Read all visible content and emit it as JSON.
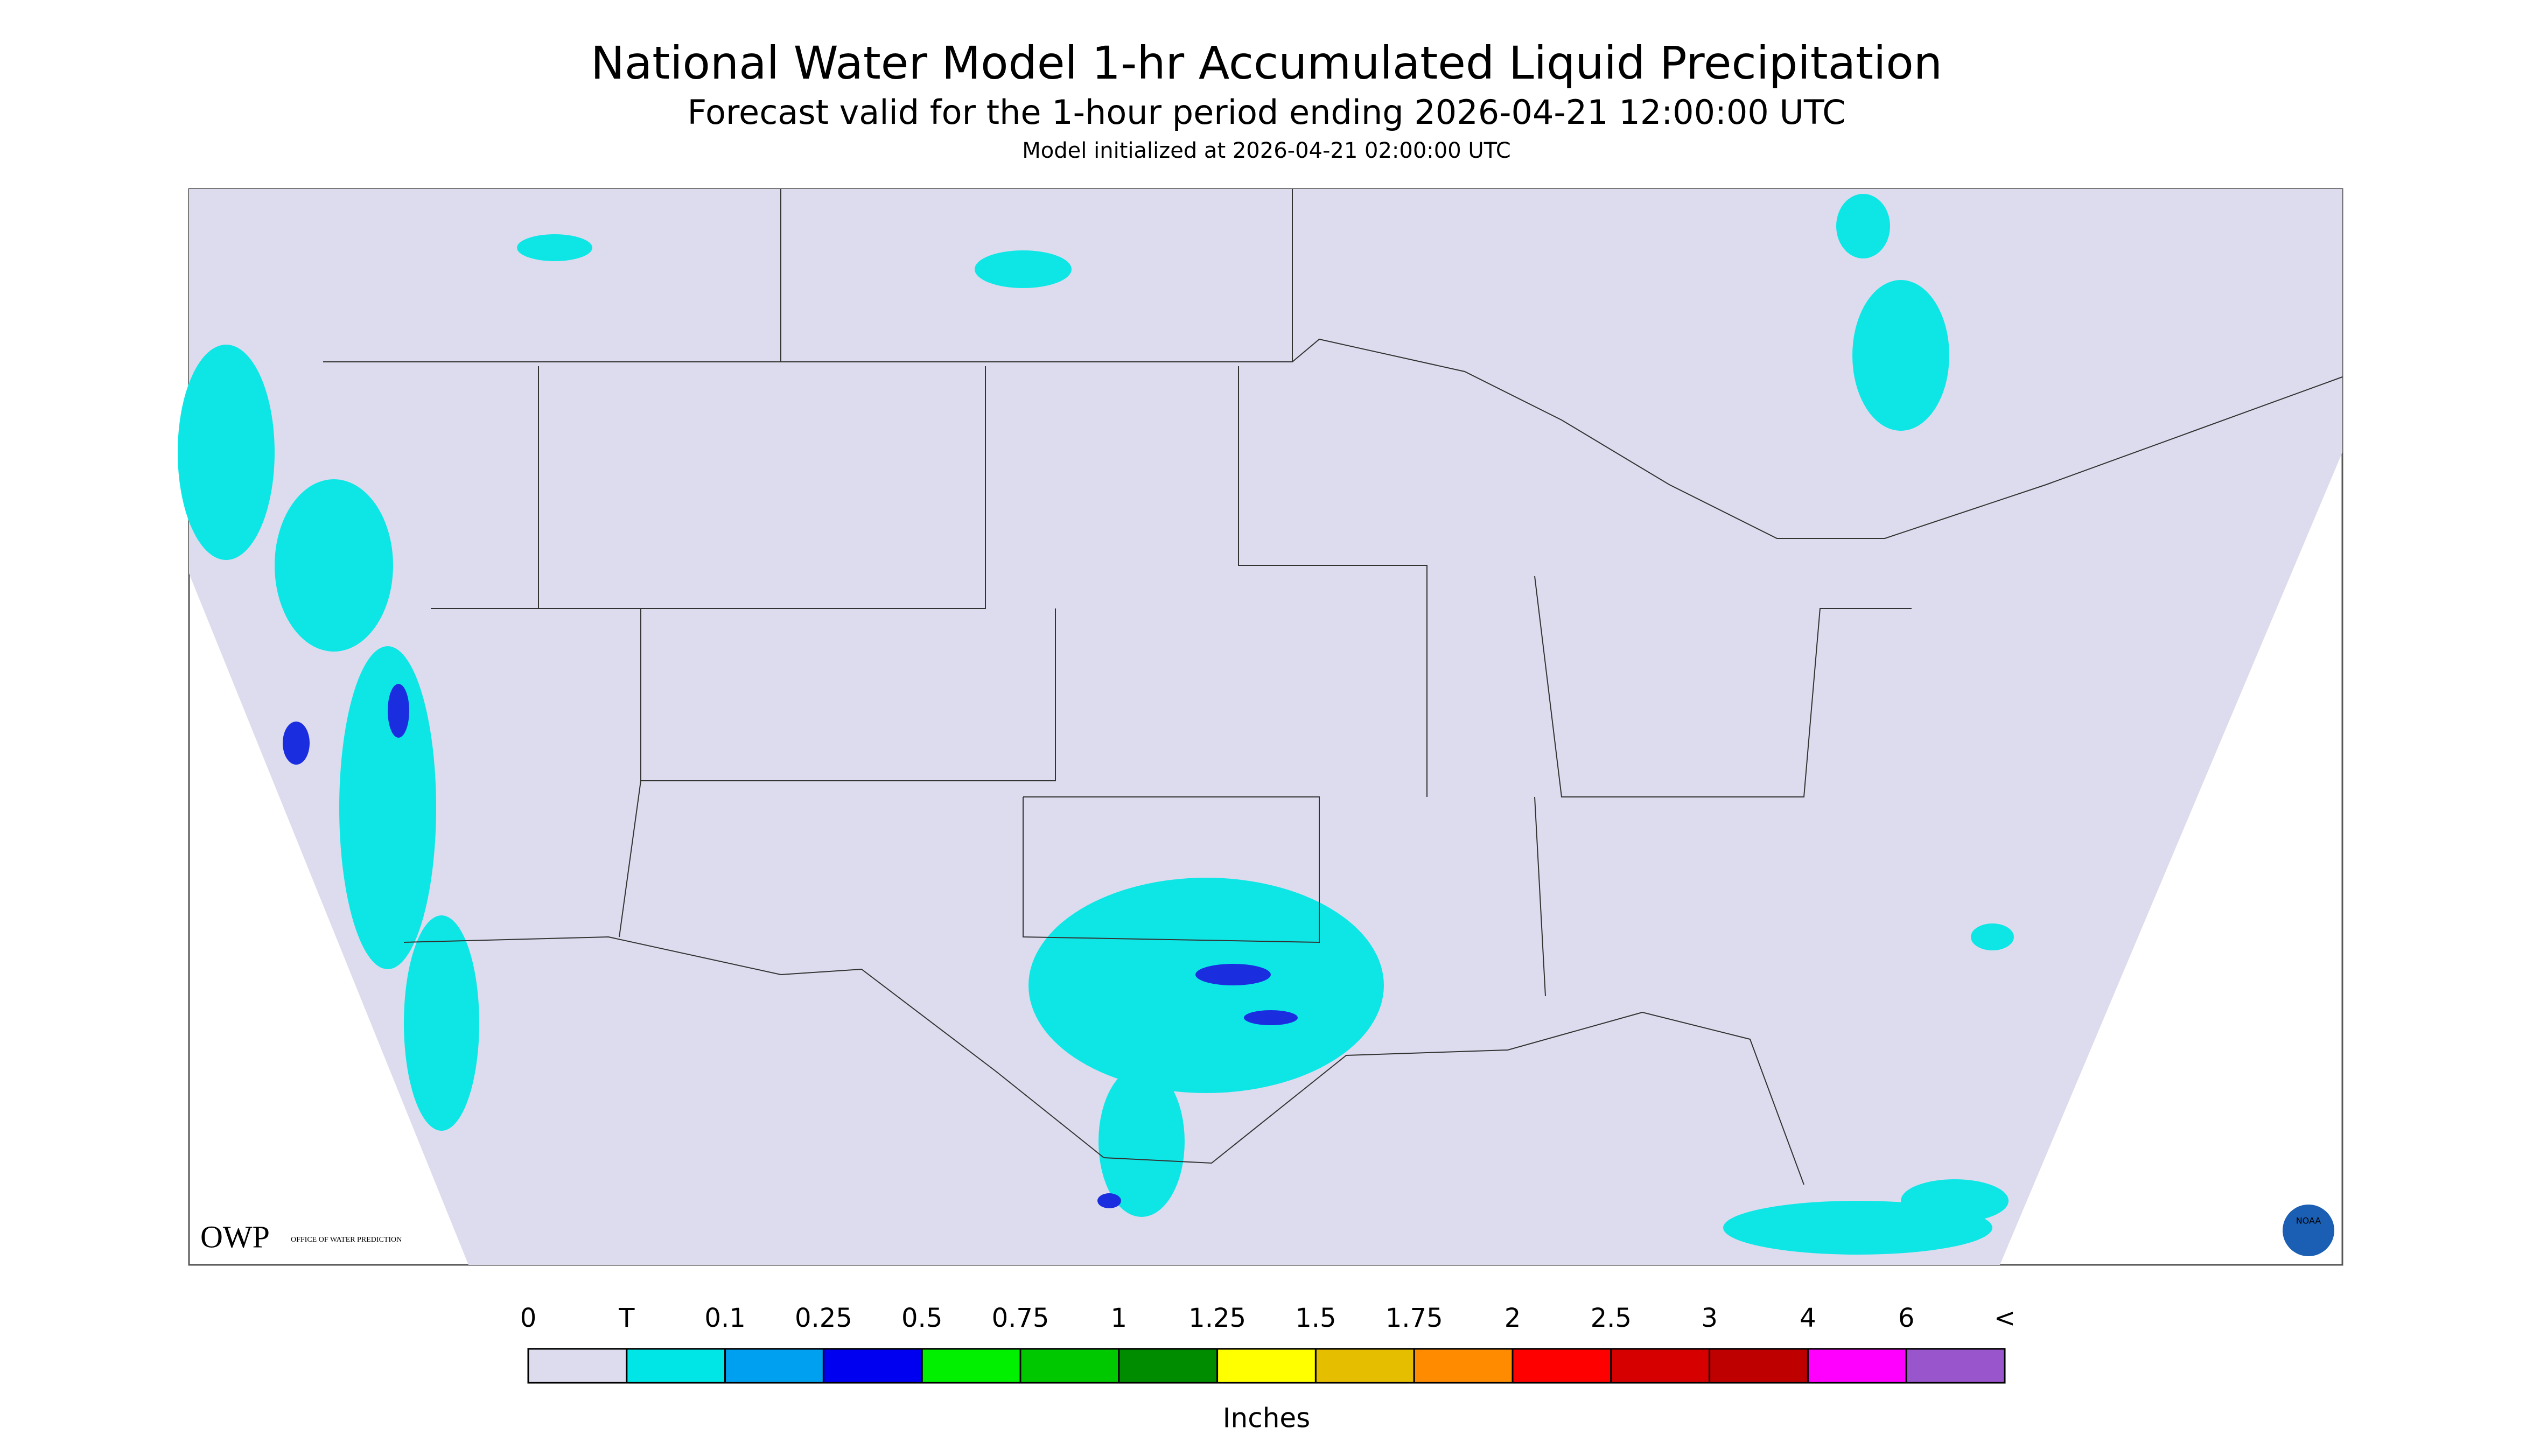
{
  "header": {
    "title": "National Water Model 1-hr Accumulated Liquid Precipitation",
    "subtitle": "Forecast valid for the 1-hour period ending 2026-04-21 12:00:00 UTC",
    "init": "Model initialized at 2026-04-21 02:00:00 UTC"
  },
  "logos": {
    "owp": "OWP",
    "owp_text": "OFFICE OF WATER PREDICTION",
    "noaa": "NOAA"
  },
  "legend": {
    "labels": [
      "0",
      "T",
      "0.1",
      "0.25",
      "0.5",
      "0.75",
      "1",
      "1.25",
      "1.5",
      "1.75",
      "2",
      "2.5",
      "3",
      "4",
      "6",
      "<"
    ],
    "colors": [
      "#dcdcee",
      "#00e5e5",
      "#00a0f0",
      "#0000f0",
      "#00f000",
      "#00c800",
      "#008c00",
      "#ffff00",
      "#e6be00",
      "#ff8c00",
      "#ff0000",
      "#d70000",
      "#be0000",
      "#ff00ff",
      "#9955cc"
    ],
    "unit": "Inches"
  }
}
